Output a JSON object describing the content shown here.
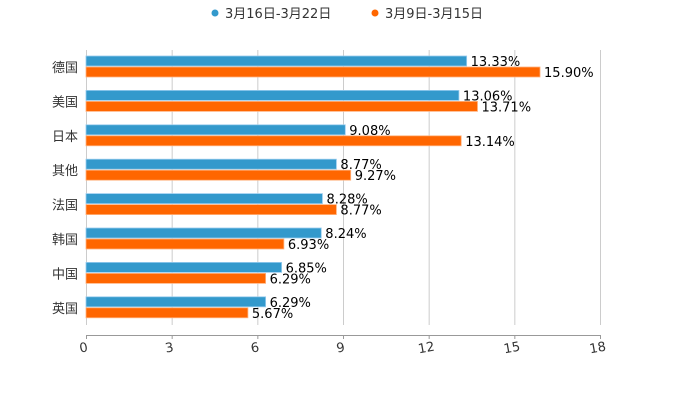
{
  "chart_data": {
    "type": "bar",
    "orientation": "horizontal",
    "title": "",
    "xlabel": "",
    "ylabel": "",
    "categories": [
      "德国",
      "美国",
      "日本",
      "其他",
      "法国",
      "韩国",
      "中国",
      "英国"
    ],
    "series": [
      {
        "name": "3月16日-3月22日",
        "color": "#3399cc",
        "values": [
          13.33,
          13.06,
          9.08,
          8.77,
          8.28,
          8.24,
          6.85,
          6.29
        ],
        "labels": [
          "13.33%",
          "13.06%",
          "9.08%",
          "8.77%",
          "8.28%",
          "8.24%",
          "6.85%",
          "6.29%"
        ]
      },
      {
        "name": "3月9日-3月15日",
        "color": "#ff6600",
        "values": [
          15.9,
          13.71,
          13.14,
          9.27,
          8.77,
          6.93,
          6.29,
          5.67
        ],
        "labels": [
          "15.90%",
          "13.71%",
          "13.14%",
          "9.27%",
          "8.77%",
          "6.93%",
          "6.29%",
          "5.67%"
        ]
      }
    ],
    "xlim": [
      0,
      18
    ],
    "xticks": [
      "0",
      "3",
      "6",
      "9",
      "12",
      "15",
      "18"
    ],
    "grid": true,
    "legend_position": "top-center"
  }
}
